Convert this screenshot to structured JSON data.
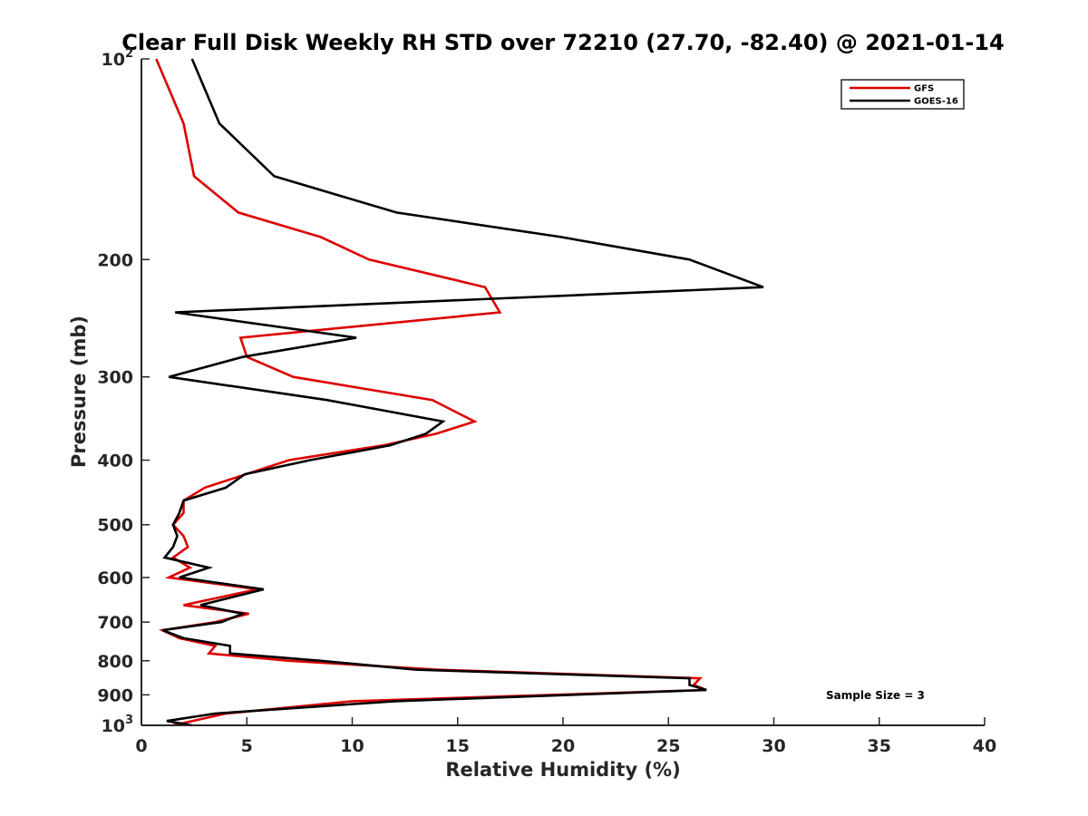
{
  "chart_data": {
    "type": "line",
    "title": "Clear Full Disk Weekly RH STD over 72210 (27.70, -82.40) @ 2021-01-14",
    "xlabel": "Relative Humidity (%)",
    "ylabel": "Pressure (mb)",
    "xlim": [
      0,
      40
    ],
    "ylim": [
      100,
      1000
    ],
    "yscale": "log",
    "y_reversed": true,
    "grid": false,
    "legend_position": "top-right",
    "x_ticks": [
      "0",
      "5",
      "10",
      "15",
      "20",
      "25",
      "30",
      "35",
      "40"
    ],
    "y_ticks": [
      {
        "value": 100,
        "base": "10",
        "exp": "2"
      },
      {
        "value": 200,
        "label": "200"
      },
      {
        "value": 300,
        "label": "300"
      },
      {
        "value": 400,
        "label": "400"
      },
      {
        "value": 500,
        "label": "500"
      },
      {
        "value": 600,
        "label": "600"
      },
      {
        "value": 700,
        "label": "700"
      },
      {
        "value": 800,
        "label": "800"
      },
      {
        "value": 900,
        "label": "900"
      },
      {
        "value": 1000,
        "base": "10",
        "exp": "3"
      }
    ],
    "annotation": "Sample Size = 3",
    "series": [
      {
        "name": "GFS",
        "color": "#dd0000",
        "points": [
          {
            "x": 0.7,
            "y": 100
          },
          {
            "x": 2.0,
            "y": 125
          },
          {
            "x": 2.5,
            "y": 150
          },
          {
            "x": 4.6,
            "y": 170
          },
          {
            "x": 8.5,
            "y": 185
          },
          {
            "x": 10.8,
            "y": 200
          },
          {
            "x": 16.3,
            "y": 220
          },
          {
            "x": 17.0,
            "y": 240
          },
          {
            "x": 4.7,
            "y": 262
          },
          {
            "x": 5.0,
            "y": 280
          },
          {
            "x": 7.2,
            "y": 300
          },
          {
            "x": 13.8,
            "y": 325
          },
          {
            "x": 15.8,
            "y": 350
          },
          {
            "x": 14.0,
            "y": 365
          },
          {
            "x": 11.5,
            "y": 380
          },
          {
            "x": 7.0,
            "y": 400
          },
          {
            "x": 3.0,
            "y": 440
          },
          {
            "x": 2.0,
            "y": 460
          },
          {
            "x": 2.0,
            "y": 480
          },
          {
            "x": 1.5,
            "y": 500
          },
          {
            "x": 2.0,
            "y": 520
          },
          {
            "x": 2.2,
            "y": 540
          },
          {
            "x": 1.5,
            "y": 560
          },
          {
            "x": 2.3,
            "y": 580
          },
          {
            "x": 1.3,
            "y": 600
          },
          {
            "x": 5.5,
            "y": 625
          },
          {
            "x": 2.0,
            "y": 660
          },
          {
            "x": 5.1,
            "y": 680
          },
          {
            "x": 3.5,
            "y": 700
          },
          {
            "x": 1.0,
            "y": 720
          },
          {
            "x": 1.8,
            "y": 740
          },
          {
            "x": 3.5,
            "y": 760
          },
          {
            "x": 3.2,
            "y": 780
          },
          {
            "x": 7.0,
            "y": 800
          },
          {
            "x": 14.0,
            "y": 825
          },
          {
            "x": 26.5,
            "y": 850
          },
          {
            "x": 26.2,
            "y": 870
          },
          {
            "x": 26.8,
            "y": 885
          },
          {
            "x": 10.0,
            "y": 920
          },
          {
            "x": 4.0,
            "y": 960
          },
          {
            "x": 1.5,
            "y": 1000
          }
        ]
      },
      {
        "name": "GOES-16",
        "color": "#000000",
        "points": [
          {
            "x": 2.4,
            "y": 100
          },
          {
            "x": 3.7,
            "y": 125
          },
          {
            "x": 6.3,
            "y": 150
          },
          {
            "x": 12.1,
            "y": 170
          },
          {
            "x": 19.9,
            "y": 185
          },
          {
            "x": 26.0,
            "y": 200
          },
          {
            "x": 29.5,
            "y": 220
          },
          {
            "x": 1.6,
            "y": 240
          },
          {
            "x": 10.2,
            "y": 262
          },
          {
            "x": 4.8,
            "y": 280
          },
          {
            "x": 1.3,
            "y": 300
          },
          {
            "x": 8.8,
            "y": 325
          },
          {
            "x": 14.3,
            "y": 350
          },
          {
            "x": 13.5,
            "y": 365
          },
          {
            "x": 11.8,
            "y": 380
          },
          {
            "x": 8.0,
            "y": 400
          },
          {
            "x": 4.9,
            "y": 420
          },
          {
            "x": 4.0,
            "y": 440
          },
          {
            "x": 2.0,
            "y": 460
          },
          {
            "x": 1.8,
            "y": 480
          },
          {
            "x": 1.5,
            "y": 500
          },
          {
            "x": 1.7,
            "y": 520
          },
          {
            "x": 1.5,
            "y": 540
          },
          {
            "x": 1.1,
            "y": 560
          },
          {
            "x": 3.2,
            "y": 580
          },
          {
            "x": 1.8,
            "y": 600
          },
          {
            "x": 5.8,
            "y": 625
          },
          {
            "x": 2.8,
            "y": 660
          },
          {
            "x": 4.8,
            "y": 680
          },
          {
            "x": 3.8,
            "y": 700
          },
          {
            "x": 1.0,
            "y": 720
          },
          {
            "x": 2.0,
            "y": 740
          },
          {
            "x": 4.2,
            "y": 760
          },
          {
            "x": 4.2,
            "y": 780
          },
          {
            "x": 8.5,
            "y": 800
          },
          {
            "x": 13.0,
            "y": 825
          },
          {
            "x": 26.0,
            "y": 850
          },
          {
            "x": 26.0,
            "y": 870
          },
          {
            "x": 26.8,
            "y": 885
          },
          {
            "x": 12.0,
            "y": 920
          },
          {
            "x": 3.5,
            "y": 960
          },
          {
            "x": 1.2,
            "y": 985
          },
          {
            "x": 2.4,
            "y": 1000
          }
        ]
      }
    ]
  }
}
